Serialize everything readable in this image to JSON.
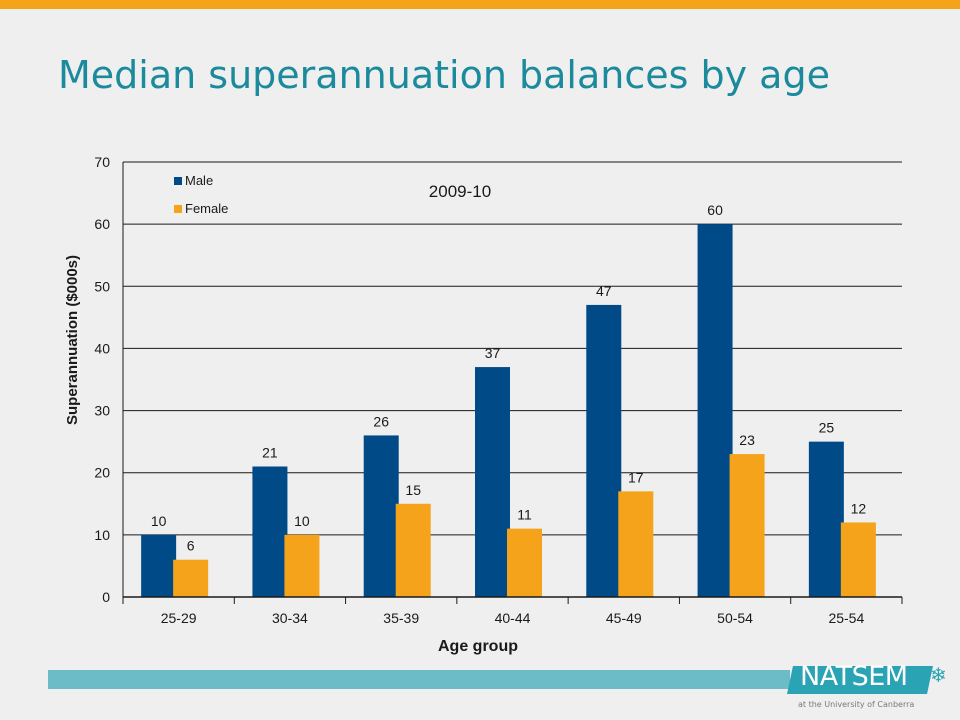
{
  "slide": {
    "title": "Median superannuation balances by age",
    "colors": {
      "title": "#1a8a9c",
      "top_bar": "#f5a31a",
      "footer_strip": "#6bbcc6",
      "background": "#efefef"
    }
  },
  "logo": {
    "name": "NATSEM",
    "tagline": "at the University of Canberra",
    "icon": "snowflake-icon",
    "star_glyph": "❄",
    "colors": {
      "band": "#2aa3b4",
      "star": "#2aa3b4"
    }
  },
  "chart_data": {
    "type": "bar",
    "title": "2009-10",
    "xlabel": "Age group",
    "ylabel": "Superannuation ($000s)",
    "ylim": [
      0,
      70
    ],
    "yticks": [
      0,
      10,
      20,
      30,
      40,
      50,
      60,
      70
    ],
    "grid": true,
    "legend_position": "top-left",
    "categories": [
      "25-29",
      "30-34",
      "35-39",
      "40-44",
      "45-49",
      "50-54",
      "25-54"
    ],
    "series": [
      {
        "name": "Male",
        "color": "#004a87",
        "values": [
          10,
          21,
          26,
          37,
          47,
          60,
          25
        ]
      },
      {
        "name": "Female",
        "color": "#f5a31a",
        "values": [
          6,
          10,
          15,
          11,
          17,
          23,
          12
        ]
      }
    ]
  }
}
